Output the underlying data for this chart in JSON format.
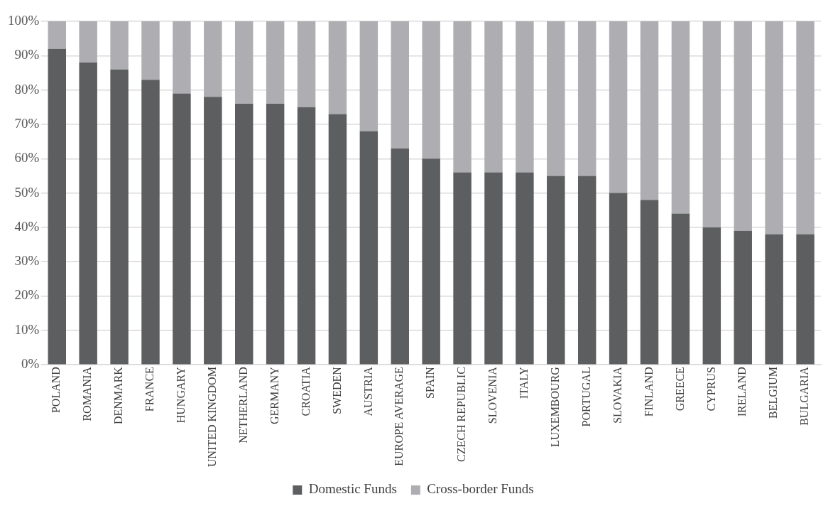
{
  "chart_data": {
    "type": "bar",
    "stacked": true,
    "categories": [
      "POLAND",
      "ROMANIA",
      "DENMARK",
      "FRANCE",
      "HUNGARY",
      "UNITED KINGDOM",
      "NETHERLAND",
      "GERMANY",
      "CROATIA",
      "SWEDEN",
      "AUSTRIA",
      "EUROPE AVERAGE",
      "SPAIN",
      "CZECH REPUBLIC",
      "SLOVENIA",
      "ITALY",
      "LUXEMBOURG",
      "PORTUGAL",
      "SLOVAKIA",
      "FINLAND",
      "GREECE",
      "CYPRUS",
      "IRELAND",
      "BELGIUM",
      "BULGARIA"
    ],
    "series": [
      {
        "name": "Domestic Funds",
        "color": "#5d5e60",
        "values": [
          92,
          88,
          86,
          83,
          79,
          78,
          76,
          76,
          75,
          73,
          68,
          63,
          60,
          56,
          56,
          56,
          55,
          55,
          50,
          48,
          44,
          40,
          39,
          38,
          38
        ]
      },
      {
        "name": "Cross-border Funds",
        "color": "#aeaeb2",
        "values": [
          8,
          12,
          14,
          17,
          21,
          22,
          24,
          24,
          25,
          27,
          32,
          37,
          40,
          44,
          44,
          44,
          45,
          45,
          50,
          52,
          56,
          60,
          61,
          62,
          62
        ]
      }
    ],
    "ylim": [
      0,
      100
    ],
    "yticks": [
      {
        "value": 0,
        "label": "0%"
      },
      {
        "value": 10,
        "label": "10%"
      },
      {
        "value": 20,
        "label": "20%"
      },
      {
        "value": 30,
        "label": "30%"
      },
      {
        "value": 40,
        "label": "40%"
      },
      {
        "value": 50,
        "label": "50%"
      },
      {
        "value": 60,
        "label": "60%"
      },
      {
        "value": 70,
        "label": "70%"
      },
      {
        "value": 80,
        "label": "80%"
      },
      {
        "value": 90,
        "label": "90%"
      },
      {
        "value": 100,
        "label": "100%"
      }
    ],
    "grid": "y",
    "legend": "bottom"
  }
}
